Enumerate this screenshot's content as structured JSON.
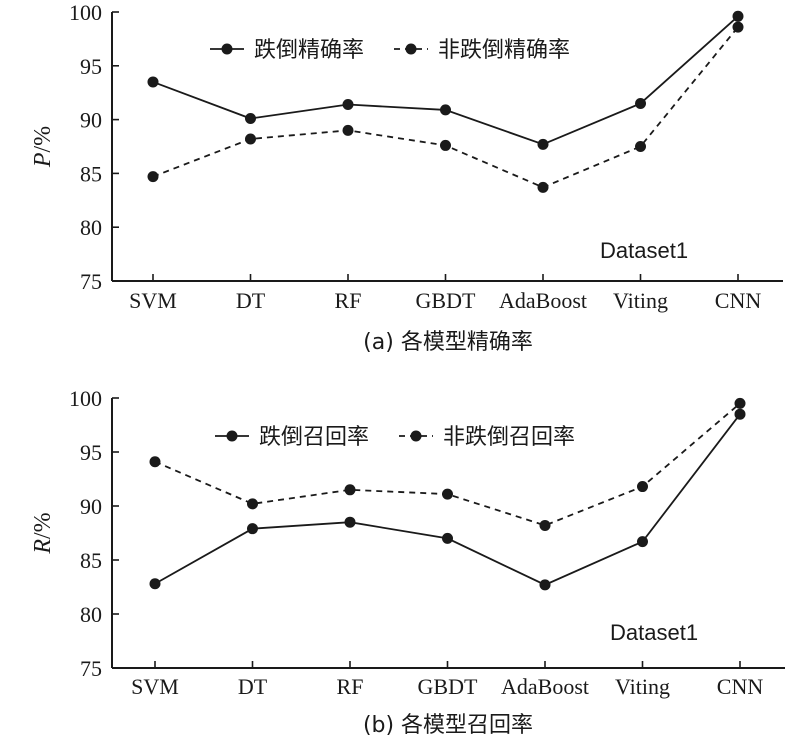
{
  "chart_data": [
    {
      "type": "line",
      "caption": "(a) 各模型精确率",
      "ylabel_italic": "P",
      "ylabel_unit": "/%",
      "annotation": "Dataset1",
      "categories": [
        "SVM",
        "DT",
        "RF",
        "GBDT",
        "AdaBoost",
        "Viting",
        "CNN"
      ],
      "ylim": [
        75,
        100
      ],
      "yticks": [
        75,
        80,
        85,
        90,
        95,
        100
      ],
      "legend_position": "top-center",
      "series": [
        {
          "name": "跌倒精确率",
          "style": "solid",
          "values": [
            93.5,
            90.1,
            91.4,
            90.9,
            87.7,
            91.5,
            99.6
          ]
        },
        {
          "name": "非跌倒精确率",
          "style": "dashed",
          "values": [
            84.7,
            88.2,
            89.0,
            87.6,
            83.7,
            87.5,
            98.6
          ]
        }
      ]
    },
    {
      "type": "line",
      "caption": "(b) 各模型召回率",
      "ylabel_italic": "R",
      "ylabel_unit": "/%",
      "annotation": "Dataset1",
      "categories": [
        "SVM",
        "DT",
        "RF",
        "GBDT",
        "AdaBoost",
        "Viting",
        "CNN"
      ],
      "ylim": [
        75,
        100
      ],
      "yticks": [
        75,
        80,
        85,
        90,
        95,
        100
      ],
      "legend_position": "top-center",
      "series": [
        {
          "name": "跌倒召回率",
          "style": "solid",
          "values": [
            82.8,
            87.9,
            88.5,
            87.0,
            82.7,
            86.7,
            98.5
          ]
        },
        {
          "name": "非跌倒召回率",
          "style": "dashed",
          "values": [
            94.1,
            90.2,
            91.5,
            91.1,
            88.2,
            91.8,
            99.5
          ]
        }
      ]
    }
  ],
  "colors": {
    "line": "#1a1a1a",
    "background": "#ffffff"
  }
}
